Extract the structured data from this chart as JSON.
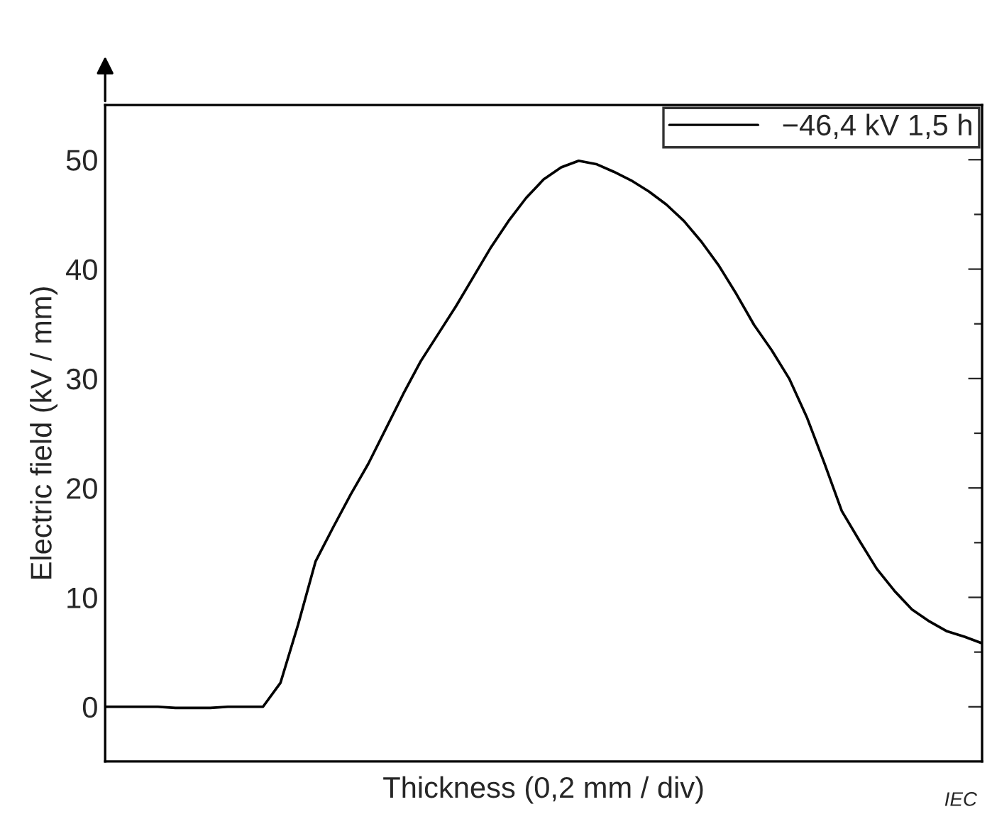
{
  "chart_data": {
    "type": "line",
    "xlabel": "Thickness (0,2 mm / div)",
    "ylabel": "Electric field (kV / mm)",
    "categories": [
      null,
      null,
      null,
      null,
      null,
      null,
      null,
      null,
      null,
      null,
      null,
      null,
      null,
      null,
      null,
      null,
      null,
      null,
      null,
      null,
      null,
      null,
      null,
      null,
      null,
      null,
      null,
      null,
      null,
      null,
      null,
      null,
      null,
      null,
      null,
      null,
      null,
      null,
      null,
      null,
      null,
      null,
      null,
      null,
      null,
      null,
      null,
      null,
      null,
      null,
      null
    ],
    "series": [
      {
        "name": "−46,4 kV 1,5 h",
        "color": "#000000",
        "values": [
          0,
          0,
          0,
          0,
          -0.1,
          -0.1,
          -0.1,
          0,
          0,
          0,
          2.2,
          7.5,
          13.3,
          16.4,
          19.4,
          22.2,
          25.4,
          28.6,
          31.6,
          34.1,
          36.6,
          39.3,
          42.0,
          44.4,
          46.5,
          48.2,
          49.3,
          49.9,
          49.6,
          48.9,
          48.1,
          47.1,
          45.9,
          44.4,
          42.5,
          40.3,
          37.7,
          34.9,
          32.6,
          30.0,
          26.5,
          22.3,
          17.9,
          15.2,
          12.6,
          10.6,
          8.9,
          7.8,
          6.9,
          6.4,
          5.8
        ]
      }
    ],
    "ylim": [
      -5,
      55
    ],
    "yticks": [
      0,
      {
        "value": 5,
        "label": null
      },
      10,
      {
        "value": 15,
        "label": null
      },
      20,
      {
        "value": 25,
        "label": null
      },
      30,
      {
        "value": 35,
        "label": null
      },
      40,
      {
        "value": 45,
        "label": null
      },
      50
    ],
    "legend": "top right",
    "grid": false,
    "marker": "none",
    "line_style": "solid",
    "annotations": [
      "IEC"
    ]
  }
}
